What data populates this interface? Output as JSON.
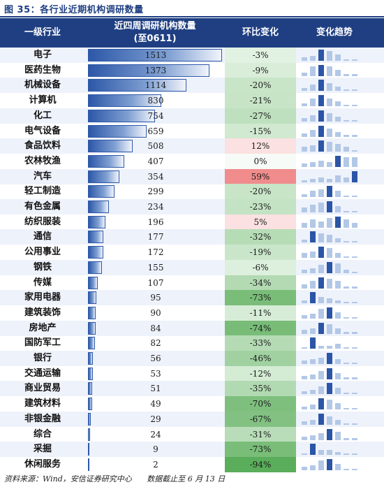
{
  "title": "图 35：各行业近期机构调研数量",
  "headers": {
    "industry": "一级行业",
    "count_line1": "近四周调研机构数量",
    "count_line2": "(至0611)",
    "change": "环比变化",
    "trend": "变化趋势"
  },
  "footer": {
    "source": "资料来源：Wind，安信证券研究中心",
    "cutoff": "数据截止至 6 月 13 日"
  },
  "colors": {
    "header_bg": "#1f3f82",
    "bar": "#2d58a8",
    "trend_dark": "#2b55a6",
    "trend_light": "#b3c8e7",
    "positive_high": "#f08c8c",
    "positive_low": "#fbe1e1",
    "negative": "#5aad5a"
  },
  "chart_data": {
    "type": "table",
    "columns": [
      "一级行业",
      "近四周调研机构数量(至0611)",
      "环比变化",
      "变化趋势"
    ],
    "max_count": 1513,
    "rows": [
      {
        "industry": "电子",
        "count": 1513,
        "change": "-3%",
        "change_value": -3,
        "trend": [
          2,
          3,
          7,
          6,
          4,
          1,
          1
        ]
      },
      {
        "industry": "医药生物",
        "count": 1373,
        "change": "-9%",
        "change_value": -9,
        "trend": [
          2,
          6,
          7,
          6,
          4,
          1,
          1
        ]
      },
      {
        "industry": "机械设备",
        "count": 1114,
        "change": "-20%",
        "change_value": -20,
        "trend": [
          2,
          4,
          7,
          5,
          3,
          1,
          1
        ]
      },
      {
        "industry": "计算机",
        "count": 830,
        "change": "-21%",
        "change_value": -21,
        "trend": [
          2,
          5,
          7,
          5,
          3,
          1,
          1
        ]
      },
      {
        "industry": "化工",
        "count": 754,
        "change": "-27%",
        "change_value": -27,
        "trend": [
          2,
          4,
          7,
          5,
          3,
          1,
          1
        ]
      },
      {
        "industry": "电气设备",
        "count": 659,
        "change": "-15%",
        "change_value": -15,
        "trend": [
          2,
          4,
          7,
          5,
          3,
          1,
          1
        ]
      },
      {
        "industry": "食品饮料",
        "count": 508,
        "change": "12%",
        "change_value": 12,
        "trend": [
          3,
          4,
          7,
          6,
          5,
          3,
          1
        ]
      },
      {
        "industry": "农林牧渔",
        "count": 407,
        "change": "0%",
        "change_value": 0,
        "trend": [
          2,
          3,
          4,
          3,
          7,
          6,
          6
        ]
      },
      {
        "industry": "汽车",
        "count": 354,
        "change": "59%",
        "change_value": 59,
        "trend": [
          1,
          2,
          3,
          2,
          4,
          3,
          7
        ]
      },
      {
        "industry": "轻工制造",
        "count": 299,
        "change": "-20%",
        "change_value": -20,
        "trend": [
          2,
          4,
          5,
          7,
          4,
          1,
          1
        ]
      },
      {
        "industry": "有色金属",
        "count": 234,
        "change": "-23%",
        "change_value": -23,
        "trend": [
          3,
          5,
          6,
          7,
          4,
          1,
          1
        ]
      },
      {
        "industry": "纺织服装",
        "count": 196,
        "change": "5%",
        "change_value": 5,
        "trend": [
          3,
          5,
          4,
          6,
          7,
          5,
          3
        ]
      },
      {
        "industry": "通信",
        "count": 177,
        "change": "-32%",
        "change_value": -32,
        "trend": [
          2,
          7,
          6,
          5,
          3,
          1,
          1
        ]
      },
      {
        "industry": "公用事业",
        "count": 172,
        "change": "-19%",
        "change_value": -19,
        "trend": [
          3,
          4,
          7,
          6,
          3,
          1,
          1
        ]
      },
      {
        "industry": "钢铁",
        "count": 155,
        "change": "-6%",
        "change_value": -6,
        "trend": [
          2,
          3,
          5,
          7,
          6,
          2,
          1
        ]
      },
      {
        "industry": "传媒",
        "count": 107,
        "change": "-34%",
        "change_value": -34,
        "trend": [
          2,
          4,
          6,
          5,
          4,
          1,
          1
        ]
      },
      {
        "industry": "家用电器",
        "count": 95,
        "change": "-73%",
        "change_value": -73,
        "trend": [
          2,
          7,
          4,
          3,
          2,
          1,
          1
        ]
      },
      {
        "industry": "建筑装饰",
        "count": 90,
        "change": "-11%",
        "change_value": -11,
        "trend": [
          2,
          3,
          6,
          7,
          4,
          1,
          1
        ]
      },
      {
        "industry": "房地产",
        "count": 84,
        "change": "-74%",
        "change_value": -74,
        "trend": [
          2,
          3,
          6,
          5,
          3,
          1,
          1
        ]
      },
      {
        "industry": "国防军工",
        "count": 82,
        "change": "-33%",
        "change_value": -33,
        "trend": [
          1,
          7,
          2,
          2,
          3,
          1,
          1
        ]
      },
      {
        "industry": "银行",
        "count": 56,
        "change": "-46%",
        "change_value": -46,
        "trend": [
          2,
          3,
          4,
          7,
          3,
          1,
          1
        ]
      },
      {
        "industry": "交通运输",
        "count": 53,
        "change": "-12%",
        "change_value": -12,
        "trend": [
          2,
          3,
          5,
          7,
          4,
          1,
          1
        ]
      },
      {
        "industry": "商业贸易",
        "count": 51,
        "change": "-35%",
        "change_value": -35,
        "trend": [
          2,
          3,
          5,
          7,
          4,
          1,
          1
        ]
      },
      {
        "industry": "建筑材料",
        "count": 49,
        "change": "-70%",
        "change_value": -70,
        "trend": [
          2,
          3,
          7,
          6,
          4,
          1,
          1
        ]
      },
      {
        "industry": "非银金融",
        "count": 29,
        "change": "-67%",
        "change_value": -67,
        "trend": [
          2,
          3,
          7,
          5,
          3,
          1,
          1
        ]
      },
      {
        "industry": "综合",
        "count": 24,
        "change": "-31%",
        "change_value": -31,
        "trend": [
          2,
          3,
          4,
          7,
          5,
          1,
          1
        ]
      },
      {
        "industry": "采掘",
        "count": 9,
        "change": "-73%",
        "change_value": -73,
        "trend": [
          1,
          7,
          3,
          3,
          2,
          1,
          1
        ]
      },
      {
        "industry": "休闲服务",
        "count": 2,
        "change": "-94%",
        "change_value": -94,
        "trend": [
          2,
          3,
          6,
          7,
          4,
          1,
          1
        ]
      }
    ]
  }
}
